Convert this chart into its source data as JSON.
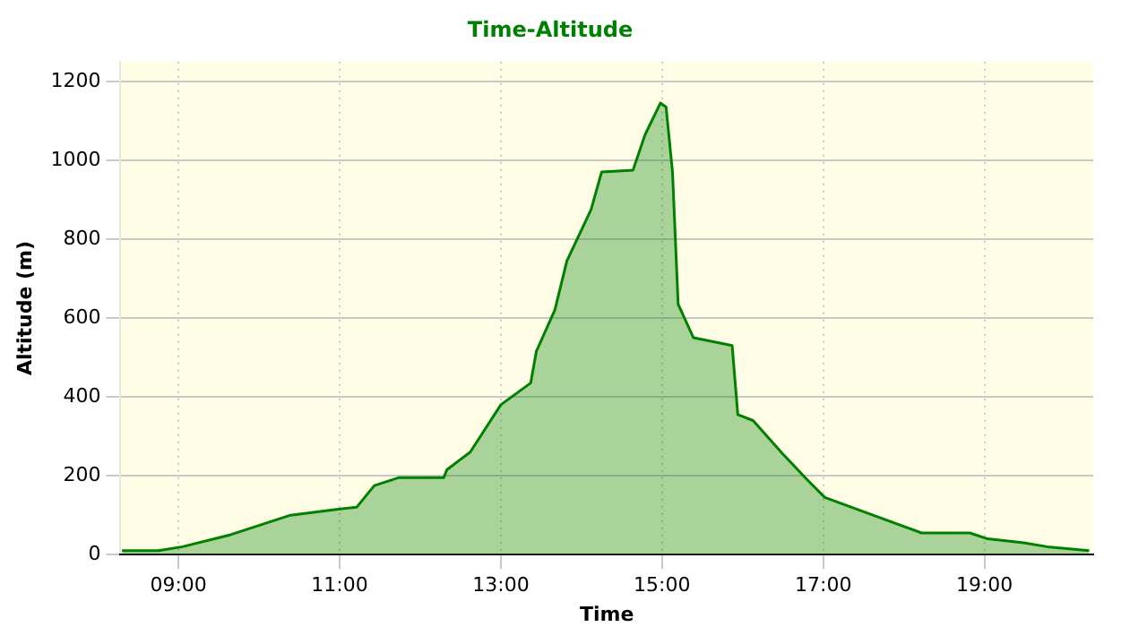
{
  "chart_data": {
    "type": "area",
    "title": "Time-Altitude",
    "xlabel": "Time",
    "ylabel": "Altitude (m)",
    "x": [
      8.3,
      8.75,
      9.05,
      9.64,
      10.39,
      10.98,
      11.21,
      11.43,
      11.73,
      12.29,
      12.33,
      12.62,
      13.0,
      13.37,
      13.44,
      13.67,
      13.82,
      14.12,
      14.25,
      14.64,
      14.79,
      14.98,
      15.05,
      15.13,
      15.2,
      15.39,
      15.87,
      15.94,
      16.13,
      16.5,
      16.8,
      17.02,
      17.55,
      18.22,
      18.82,
      19.04,
      19.49,
      19.78,
      20.3
    ],
    "series": [
      {
        "color": "#008000",
        "values": [
          10,
          10,
          20,
          50,
          100,
          115,
          120,
          175,
          195,
          195,
          215,
          260,
          380,
          435,
          515,
          620,
          745,
          875,
          970,
          975,
          1065,
          1145,
          1135,
          970,
          635,
          550,
          530,
          355,
          340,
          255,
          190,
          145,
          105,
          55,
          55,
          40,
          30,
          20,
          10
        ]
      }
    ],
    "xlim": [
      8.28,
      20.35
    ],
    "ylim": [
      0,
      1250
    ],
    "xticks": [
      {
        "value": 9,
        "label": "09:00"
      },
      {
        "value": 11,
        "label": "11:00"
      },
      {
        "value": 13,
        "label": "13:00"
      },
      {
        "value": 15,
        "label": "15:00"
      },
      {
        "value": 17,
        "label": "17:00"
      },
      {
        "value": 19,
        "label": "19:00"
      }
    ],
    "yticks": [
      0,
      200,
      400,
      600,
      800,
      1000,
      1200
    ],
    "grid": true
  }
}
